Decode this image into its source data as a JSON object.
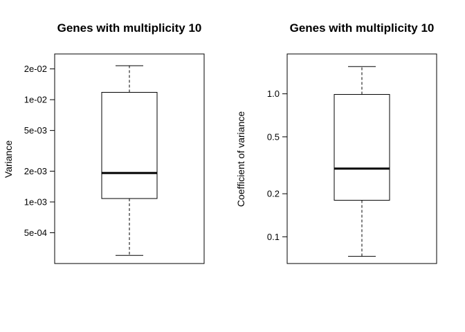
{
  "chart_data": [
    {
      "type": "box",
      "title": "Genes with multiplicity 10",
      "xlabel": "",
      "ylabel": "Variance",
      "y_scale": "log",
      "ylim": [
        0.00025,
        0.028
      ],
      "y_ticks": [
        0.0005,
        0.001,
        0.002,
        0.005,
        0.01,
        0.02
      ],
      "y_tick_labels": [
        "5e-04",
        "1e-03",
        "2e-03",
        "5e-03",
        "1e-02",
        "2e-02"
      ],
      "box": {
        "min": 0.0003,
        "q1": 0.00108,
        "median": 0.00192,
        "q3": 0.0118,
        "max": 0.0215
      }
    },
    {
      "type": "box",
      "title": "Genes with multiplicity 10",
      "xlabel": "",
      "ylabel": "Coefficient of variance",
      "y_scale": "log",
      "ylim": [
        0.065,
        1.9
      ],
      "y_ticks": [
        0.1,
        0.2,
        0.5,
        1.0
      ],
      "y_tick_labels": [
        "0.1",
        "0.2",
        "0.5",
        "1.0"
      ],
      "box": {
        "min": 0.073,
        "q1": 0.18,
        "median": 0.3,
        "q3": 0.99,
        "max": 1.55
      }
    }
  ]
}
